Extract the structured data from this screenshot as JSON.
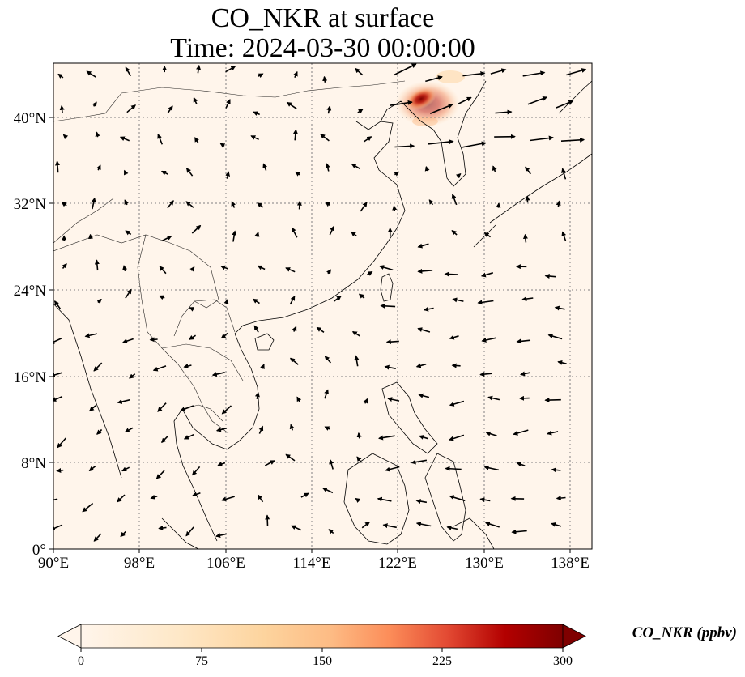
{
  "title": {
    "line1": "CO_NKR at surface",
    "line2": "Time: 2024-03-30 00:00:00"
  },
  "map": {
    "lon_ticks": [
      "90°E",
      "98°E",
      "106°E",
      "114°E",
      "122°E",
      "130°E",
      "138°E"
    ],
    "lat_ticks": [
      "0°",
      "8°N",
      "16°N",
      "24°N",
      "32°N",
      "40°N"
    ],
    "extent": {
      "lon_min": 90,
      "lon_max": 140,
      "lat_min": 0,
      "lat_max": 45
    },
    "gridlines": true,
    "background_color": "#fff5eb",
    "plume": {
      "lon_min": 123,
      "lon_max": 128,
      "lat_min": 39,
      "lat_max": 45,
      "peak": "~300 ppbv"
    }
  },
  "colorbar": {
    "label": "CO_NKR (ppbv)",
    "ticks": [
      "0",
      "75",
      "150",
      "225",
      "300"
    ],
    "min": 0,
    "max": 300,
    "colormap": "OrRd",
    "colors": [
      "#fff5eb",
      "#fdd49e",
      "#fdbb84",
      "#fc8d59",
      "#e34a33",
      "#b30000",
      "#7f0000"
    ],
    "extend": "both"
  }
}
